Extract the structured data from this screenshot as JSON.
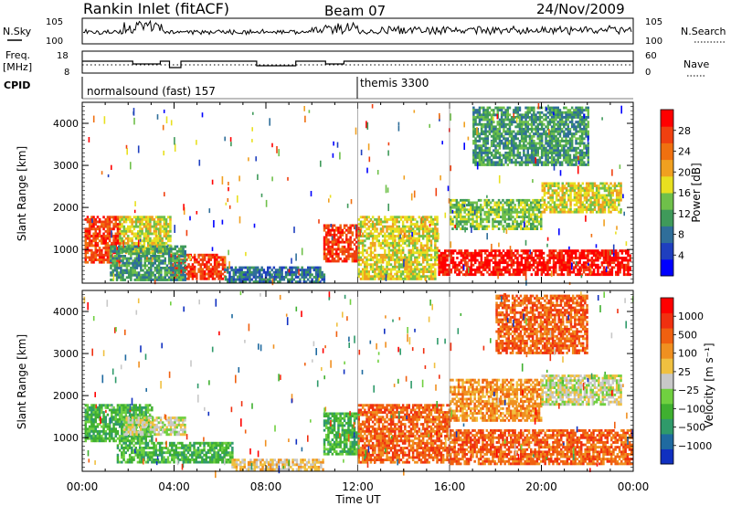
{
  "header": {
    "station": "Rankin Inlet (fitACF)",
    "beam": "Beam 07",
    "date": "24/Nov/2009"
  },
  "summary_panels": {
    "nsky": {
      "label": "N.Sky",
      "tick_top": "10^5",
      "tick_bottom": "10^0"
    },
    "nsearch": {
      "label": "N.Search",
      "tick_top": "10^5",
      "tick_bottom": "10^0"
    },
    "freq": {
      "label_line1": "Freq.",
      "label_line2": "[MHz]",
      "tick_top": "18",
      "tick_bottom": "8"
    },
    "nave": {
      "label": "Nave",
      "tick_top": "60",
      "tick_bottom": "0"
    },
    "cpid": {
      "label": "CPID",
      "mode1": "normalsound (fast) 157",
      "mode2": "themis 3300"
    }
  },
  "chart_data": [
    {
      "type": "heatmap",
      "quantity": "Power",
      "xlabel": "",
      "ylabel": "Slant Range [km]",
      "x_ticks": [
        "00:00",
        "04:00",
        "08:00",
        "12:00",
        "16:00",
        "20:00",
        "00:00"
      ],
      "xlim_hours": [
        0,
        24
      ],
      "y_ticks": [
        1000,
        2000,
        3000,
        4000
      ],
      "ylim": [
        200,
        4500
      ],
      "colorbar": {
        "label": "Power [dB]",
        "ticks": [
          "28",
          "24",
          "20",
          "16",
          "12",
          "8",
          "4"
        ],
        "colors": [
          "#0000ff",
          "#1f3fbf",
          "#2f6e9a",
          "#3f9a5a",
          "#6fc04a",
          "#e8e020",
          "#f0a020",
          "#f07010",
          "#f04010",
          "#ff0000"
        ]
      },
      "regions": [
        {
          "t0": 0.1,
          "t1": 1.6,
          "r0": 700,
          "r1": 1800,
          "level": 8
        },
        {
          "t0": 1.6,
          "t1": 3.8,
          "r0": 900,
          "r1": 1800,
          "level": 5
        },
        {
          "t0": 3.8,
          "t1": 6.2,
          "r0": 300,
          "r1": 900,
          "level": 8
        },
        {
          "t0": 1.2,
          "t1": 4.5,
          "r0": 300,
          "r1": 1100,
          "level": 3
        },
        {
          "t0": 6.2,
          "t1": 10.5,
          "r0": 250,
          "r1": 600,
          "level": 2
        },
        {
          "t0": 10.5,
          "t1": 12.0,
          "r0": 700,
          "r1": 1600,
          "level": 8
        },
        {
          "t0": 12.0,
          "t1": 15.5,
          "r0": 300,
          "r1": 1800,
          "level": 5
        },
        {
          "t0": 15.5,
          "t1": 23.9,
          "r0": 400,
          "r1": 1000,
          "level": 9
        },
        {
          "t0": 16.0,
          "t1": 20.0,
          "r0": 1500,
          "r1": 2200,
          "level": 4
        },
        {
          "t0": 20.0,
          "t1": 23.5,
          "r0": 1900,
          "r1": 2600,
          "level": 5
        },
        {
          "t0": 17.0,
          "t1": 22.0,
          "r0": 3000,
          "r1": 4400,
          "level": 3
        }
      ]
    },
    {
      "type": "heatmap",
      "quantity": "Velocity",
      "xlabel": "Time UT",
      "ylabel": "Slant Range [km]",
      "x_ticks": [
        "00:00",
        "04:00",
        "08:00",
        "12:00",
        "16:00",
        "20:00",
        "00:00"
      ],
      "xlim_hours": [
        0,
        24
      ],
      "y_ticks": [
        1000,
        2000,
        3000,
        4000
      ],
      "ylim": [
        200,
        4500
      ],
      "colorbar": {
        "label": "Velocity [m s⁻¹]",
        "ticks": [
          "1000",
          "500",
          "100",
          "25",
          "−25",
          "−100",
          "−500",
          "−1000"
        ],
        "colors": [
          "#1030c0",
          "#1f6aa0",
          "#2f9a6a",
          "#3fb030",
          "#70d040",
          "#c8c8c8",
          "#f0c040",
          "#f09020",
          "#f06010",
          "#f03010",
          "#ff0000"
        ]
      },
      "regions": [
        {
          "t0": 0.1,
          "t1": 3.0,
          "r0": 900,
          "r1": 1800,
          "level": 3
        },
        {
          "t0": 1.8,
          "t1": 4.5,
          "r0": 1100,
          "r1": 1500,
          "level": 5
        },
        {
          "t0": 1.5,
          "t1": 6.5,
          "r0": 400,
          "r1": 900,
          "level": 3
        },
        {
          "t0": 6.5,
          "t1": 10.5,
          "r0": 250,
          "r1": 500,
          "level": 6
        },
        {
          "t0": 10.5,
          "t1": 12.0,
          "r0": 600,
          "r1": 1600,
          "level": 3
        },
        {
          "t0": 12.0,
          "t1": 16.0,
          "r0": 400,
          "r1": 1800,
          "level": 8
        },
        {
          "t0": 16.0,
          "t1": 23.9,
          "r0": 400,
          "r1": 1200,
          "level": 8
        },
        {
          "t0": 16.0,
          "t1": 20.0,
          "r0": 1400,
          "r1": 2400,
          "level": 7
        },
        {
          "t0": 20.0,
          "t1": 23.5,
          "r0": 1800,
          "r1": 2500,
          "level": 5
        },
        {
          "t0": 18.0,
          "t1": 22.0,
          "r0": 3000,
          "r1": 4400,
          "level": 8
        }
      ]
    }
  ]
}
